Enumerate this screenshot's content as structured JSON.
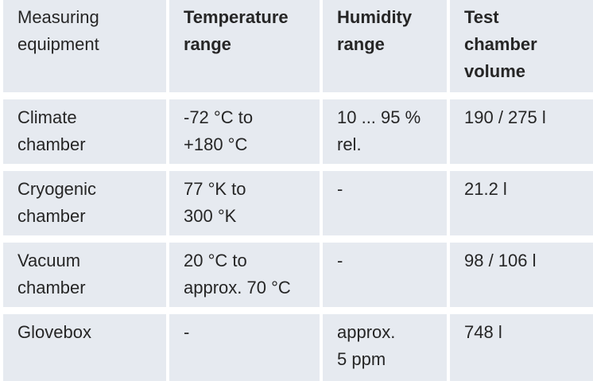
{
  "table": {
    "headers": [
      [
        "Measuring",
        "equipment"
      ],
      [
        "Temperature",
        "range"
      ],
      [
        "Humidity",
        "range"
      ],
      [
        "Test",
        "chamber",
        "volume"
      ]
    ],
    "rows": [
      {
        "cells": [
          [
            "Climate",
            "chamber"
          ],
          [
            "-72 °C to",
            "+180 °C"
          ],
          [
            "10 ... 95 %",
            "rel."
          ],
          [
            "190 / 275 l"
          ]
        ]
      },
      {
        "cells": [
          [
            "Cryogenic",
            "chamber"
          ],
          [
            "77 °K to",
            "300 °K"
          ],
          [
            "-"
          ],
          [
            "21.2 l"
          ]
        ]
      },
      {
        "cells": [
          [
            "Vacuum",
            "chamber"
          ],
          [
            "20 °C to",
            "approx. 70 °C"
          ],
          [
            "-"
          ],
          [
            "98 / 106 l"
          ]
        ]
      },
      {
        "cells": [
          [
            "Glovebox"
          ],
          [
            "-"
          ],
          [
            "approx.",
            "5 ppm"
          ],
          [
            "748 l"
          ]
        ]
      }
    ]
  }
}
